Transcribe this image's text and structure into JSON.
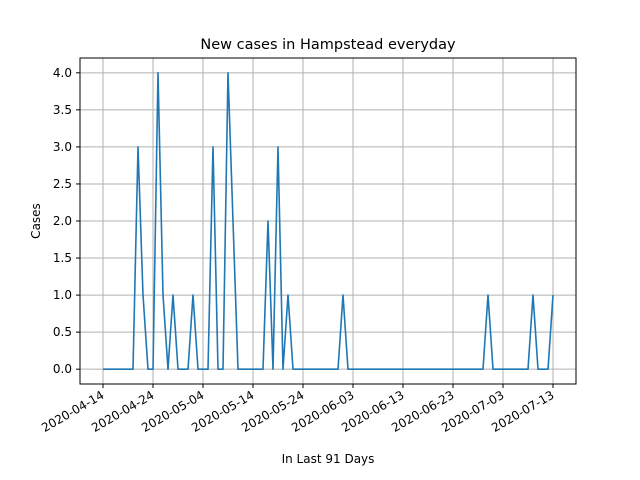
{
  "chart_data": {
    "type": "line",
    "title": "New cases in Hampstead everyday",
    "xlabel": "In Last 91 Days",
    "ylabel": "Cases",
    "x_start_date": "2020-04-14",
    "x_end_date": "2020-07-13",
    "x_ticks": [
      "2020-04-14",
      "2020-04-24",
      "2020-05-04",
      "2020-05-14",
      "2020-05-24",
      "2020-06-03",
      "2020-06-13",
      "2020-06-23",
      "2020-07-03",
      "2020-07-13"
    ],
    "y_ticks": [
      "0.0",
      "0.5",
      "1.0",
      "1.5",
      "2.0",
      "2.5",
      "3.0",
      "3.5",
      "4.0"
    ],
    "ylim": [
      -0.2,
      4.2
    ],
    "grid": true,
    "line_color": "#1f77b4",
    "series": [
      {
        "values": [
          [
            "2020-04-14",
            0
          ],
          [
            "2020-04-15",
            0
          ],
          [
            "2020-04-16",
            0
          ],
          [
            "2020-04-17",
            0
          ],
          [
            "2020-04-18",
            0
          ],
          [
            "2020-04-19",
            0
          ],
          [
            "2020-04-20",
            0
          ],
          [
            "2020-04-21",
            3
          ],
          [
            "2020-04-22",
            1
          ],
          [
            "2020-04-23",
            0
          ],
          [
            "2020-04-24",
            0
          ],
          [
            "2020-04-25",
            4
          ],
          [
            "2020-04-26",
            1
          ],
          [
            "2020-04-27",
            0
          ],
          [
            "2020-04-28",
            1
          ],
          [
            "2020-04-29",
            0
          ],
          [
            "2020-04-30",
            0
          ],
          [
            "2020-05-01",
            0
          ],
          [
            "2020-05-02",
            1
          ],
          [
            "2020-05-03",
            0
          ],
          [
            "2020-05-04",
            0
          ],
          [
            "2020-05-05",
            0
          ],
          [
            "2020-05-06",
            3
          ],
          [
            "2020-05-07",
            0
          ],
          [
            "2020-05-08",
            0
          ],
          [
            "2020-05-09",
            4
          ],
          [
            "2020-05-10",
            2
          ],
          [
            "2020-05-11",
            0
          ],
          [
            "2020-05-12",
            0
          ],
          [
            "2020-05-13",
            0
          ],
          [
            "2020-05-14",
            0
          ],
          [
            "2020-05-15",
            0
          ],
          [
            "2020-05-16",
            0
          ],
          [
            "2020-05-17",
            2
          ],
          [
            "2020-05-18",
            0
          ],
          [
            "2020-05-19",
            3
          ],
          [
            "2020-05-20",
            0
          ],
          [
            "2020-05-21",
            1
          ],
          [
            "2020-05-22",
            0
          ],
          [
            "2020-05-23",
            0
          ],
          [
            "2020-05-24",
            0
          ],
          [
            "2020-05-25",
            0
          ],
          [
            "2020-05-26",
            0
          ],
          [
            "2020-05-27",
            0
          ],
          [
            "2020-05-28",
            0
          ],
          [
            "2020-05-29",
            0
          ],
          [
            "2020-05-30",
            0
          ],
          [
            "2020-05-31",
            0
          ],
          [
            "2020-06-01",
            1
          ],
          [
            "2020-06-02",
            0
          ],
          [
            "2020-06-03",
            0
          ],
          [
            "2020-06-04",
            0
          ],
          [
            "2020-06-05",
            0
          ],
          [
            "2020-06-06",
            0
          ],
          [
            "2020-06-07",
            0
          ],
          [
            "2020-06-08",
            0
          ],
          [
            "2020-06-09",
            0
          ],
          [
            "2020-06-10",
            0
          ],
          [
            "2020-06-11",
            0
          ],
          [
            "2020-06-12",
            0
          ],
          [
            "2020-06-13",
            0
          ],
          [
            "2020-06-14",
            0
          ],
          [
            "2020-06-15",
            0
          ],
          [
            "2020-06-16",
            0
          ],
          [
            "2020-06-17",
            0
          ],
          [
            "2020-06-18",
            0
          ],
          [
            "2020-06-19",
            0
          ],
          [
            "2020-06-20",
            0
          ],
          [
            "2020-06-21",
            0
          ],
          [
            "2020-06-22",
            0
          ],
          [
            "2020-06-23",
            0
          ],
          [
            "2020-06-24",
            0
          ],
          [
            "2020-06-25",
            0
          ],
          [
            "2020-06-26",
            0
          ],
          [
            "2020-06-27",
            0
          ],
          [
            "2020-06-28",
            0
          ],
          [
            "2020-06-29",
            0
          ],
          [
            "2020-06-30",
            1
          ],
          [
            "2020-07-01",
            0
          ],
          [
            "2020-07-02",
            0
          ],
          [
            "2020-07-03",
            0
          ],
          [
            "2020-07-04",
            0
          ],
          [
            "2020-07-05",
            0
          ],
          [
            "2020-07-06",
            0
          ],
          [
            "2020-07-07",
            0
          ],
          [
            "2020-07-08",
            0
          ],
          [
            "2020-07-09",
            1
          ],
          [
            "2020-07-10",
            0
          ],
          [
            "2020-07-11",
            0
          ],
          [
            "2020-07-12",
            0
          ],
          [
            "2020-07-13",
            1
          ]
        ]
      }
    ]
  }
}
